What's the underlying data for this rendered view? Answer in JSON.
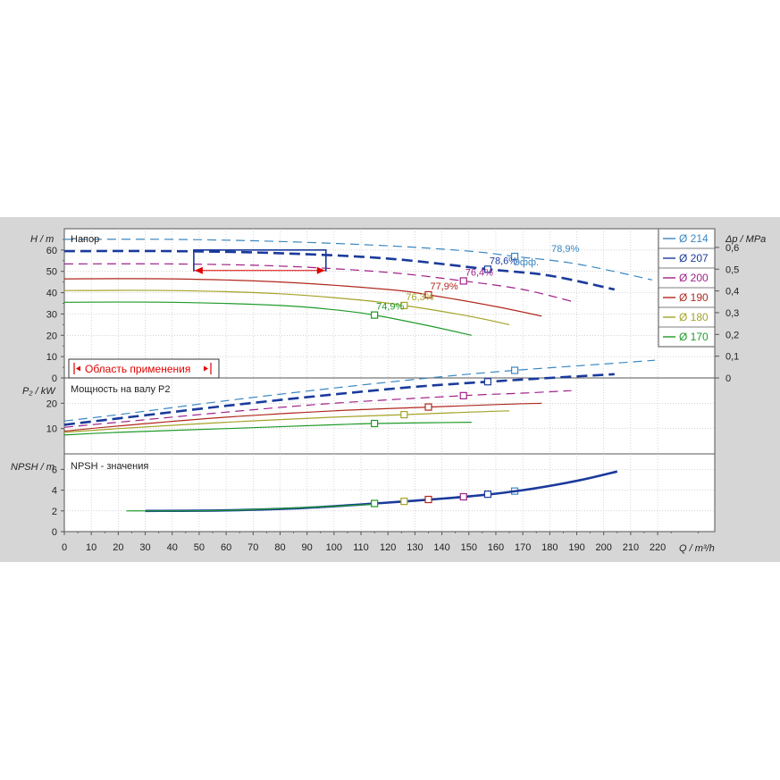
{
  "chart_data": {
    "type": "line",
    "x_unit_label": "Q / m³/h",
    "x_ticks": [
      0,
      10,
      20,
      30,
      40,
      50,
      60,
      70,
      80,
      90,
      100,
      110,
      120,
      130,
      140,
      150,
      160,
      170,
      180,
      190,
      200,
      210,
      220
    ],
    "panels": {
      "head": {
        "axis_label": "H / m",
        "title": "Напор",
        "y_ticks": [
          0,
          10,
          20,
          30,
          40,
          50,
          60
        ],
        "y_range": [
          0,
          70
        ],
        "right_axis_label": "Δp / MPa",
        "right_ticks": [
          "0",
          "0,1",
          "0,2",
          "0,3",
          "0,4",
          "0,5",
          "0,6"
        ],
        "application_area_label": "Область применения",
        "efficiency_prefix": "Эфф."
      },
      "power": {
        "axis_label": "P₂ / kW",
        "title": "Мощность на валу P2",
        "y_ticks": [
          10,
          20
        ],
        "y_range": [
          0,
          30
        ]
      },
      "npsh": {
        "axis_label": "NPSH / m",
        "title": "NPSH - значения",
        "y_ticks": [
          0,
          2,
          4,
          6
        ],
        "y_range": [
          0,
          7.5
        ]
      }
    },
    "series": [
      {
        "name": "Ø 214",
        "color": "#3a87c0",
        "dash": "10,6",
        "width": 1.2,
        "head": [
          [
            0,
            65
          ],
          [
            40,
            65
          ],
          [
            80,
            64
          ],
          [
            120,
            62
          ],
          [
            150,
            59.5
          ],
          [
            167,
            57
          ],
          [
            190,
            53.5
          ],
          [
            218,
            46
          ]
        ],
        "bep": [
          167,
          57
        ],
        "eff_label": "78,9%",
        "power": [
          [
            0,
            13
          ],
          [
            20,
            15.5
          ],
          [
            60,
            21
          ],
          [
            100,
            26
          ],
          [
            140,
            30.5
          ],
          [
            167,
            33
          ],
          [
            200,
            35.5
          ],
          [
            219,
            37
          ]
        ],
        "npsh": [
          [
            0,
            0
          ],
          [
            0,
            0
          ]
        ]
      },
      {
        "name": "Ø 207",
        "color": "#1a3a9c",
        "dash": "12,6",
        "width": 2.6,
        "head": [
          [
            0,
            59.5
          ],
          [
            40,
            59.5
          ],
          [
            80,
            58.5
          ],
          [
            120,
            56
          ],
          [
            157,
            51
          ],
          [
            180,
            48
          ],
          [
            204,
            41.5
          ]
        ],
        "bep": [
          157,
          51
        ],
        "eff_label": "78,6%",
        "power": [
          [
            0,
            11.5
          ],
          [
            20,
            14
          ],
          [
            60,
            19
          ],
          [
            100,
            23.5
          ],
          [
            130,
            26.5
          ],
          [
            157,
            28.5
          ],
          [
            180,
            30
          ],
          [
            204,
            31.5
          ]
        ],
        "npsh": [
          [
            30,
            2
          ],
          [
            60,
            2.05
          ],
          [
            90,
            2.3
          ],
          [
            120,
            2.8
          ],
          [
            150,
            3.4
          ],
          [
            170,
            4
          ],
          [
            190,
            4.9
          ],
          [
            205,
            5.8
          ]
        ]
      },
      {
        "name": "Ø 200",
        "color": "#a0208a",
        "dash": "10,6",
        "width": 1.2,
        "head": [
          [
            0,
            53.5
          ],
          [
            40,
            53.5
          ],
          [
            80,
            52.5
          ],
          [
            120,
            49.5
          ],
          [
            148,
            45.5
          ],
          [
            170,
            41.5
          ],
          [
            188,
            36
          ]
        ],
        "bep": [
          148,
          45.5
        ],
        "eff_label": "76,4%",
        "power": [
          [
            0,
            10.5
          ],
          [
            20,
            12.5
          ],
          [
            60,
            16.5
          ],
          [
            100,
            20
          ],
          [
            148,
            23
          ],
          [
            170,
            24
          ],
          [
            188,
            25
          ]
        ],
        "npsh": [
          [
            0,
            0
          ],
          [
            0,
            0
          ]
        ]
      },
      {
        "name": "Ø 190",
        "color": "#b0281e",
        "dash": "",
        "width": 1.2,
        "head": [
          [
            0,
            46.5
          ],
          [
            40,
            46.5
          ],
          [
            80,
            45
          ],
          [
            120,
            41.5
          ],
          [
            135,
            39
          ],
          [
            160,
            33.5
          ],
          [
            177,
            29
          ]
        ],
        "bep": [
          135,
          39
        ],
        "eff_label": "77,9%",
        "power": [
          [
            0,
            9
          ],
          [
            20,
            11
          ],
          [
            60,
            14.5
          ],
          [
            100,
            17
          ],
          [
            135,
            18.5
          ],
          [
            160,
            19.5
          ],
          [
            177,
            20
          ]
        ],
        "npsh": [
          [
            0,
            0
          ],
          [
            0,
            0
          ]
        ]
      },
      {
        "name": "Ø 180",
        "color": "#a3a328",
        "dash": "",
        "width": 1.2,
        "head": [
          [
            0,
            41
          ],
          [
            40,
            41
          ],
          [
            80,
            39.5
          ],
          [
            110,
            36.5
          ],
          [
            126,
            34
          ],
          [
            150,
            29
          ],
          [
            165,
            25
          ]
        ],
        "bep": [
          126,
          34
        ],
        "eff_label": "76,3%",
        "power": [
          [
            0,
            8.5
          ],
          [
            20,
            10
          ],
          [
            60,
            12.5
          ],
          [
            100,
            14.5
          ],
          [
            126,
            15.5
          ],
          [
            150,
            16.5
          ],
          [
            165,
            17
          ]
        ],
        "npsh": [
          [
            0,
            0
          ],
          [
            0,
            0
          ]
        ]
      },
      {
        "name": "Ø 170",
        "color": "#1e9a28",
        "dash": "",
        "width": 1.2,
        "head": [
          [
            0,
            35.5
          ],
          [
            40,
            35.5
          ],
          [
            80,
            34
          ],
          [
            100,
            32
          ],
          [
            115,
            29.5
          ],
          [
            135,
            24.5
          ],
          [
            151,
            20
          ]
        ],
        "bep": [
          115,
          29.5
        ],
        "eff_label": "74,9%",
        "power": [
          [
            0,
            7.5
          ],
          [
            20,
            8.5
          ],
          [
            60,
            10
          ],
          [
            100,
            11.5
          ],
          [
            115,
            12
          ],
          [
            151,
            12.5
          ]
        ],
        "npsh": [
          [
            23,
            2
          ],
          [
            60,
            2.05
          ],
          [
            100,
            2.45
          ],
          [
            115,
            2.65
          ]
        ]
      }
    ]
  }
}
